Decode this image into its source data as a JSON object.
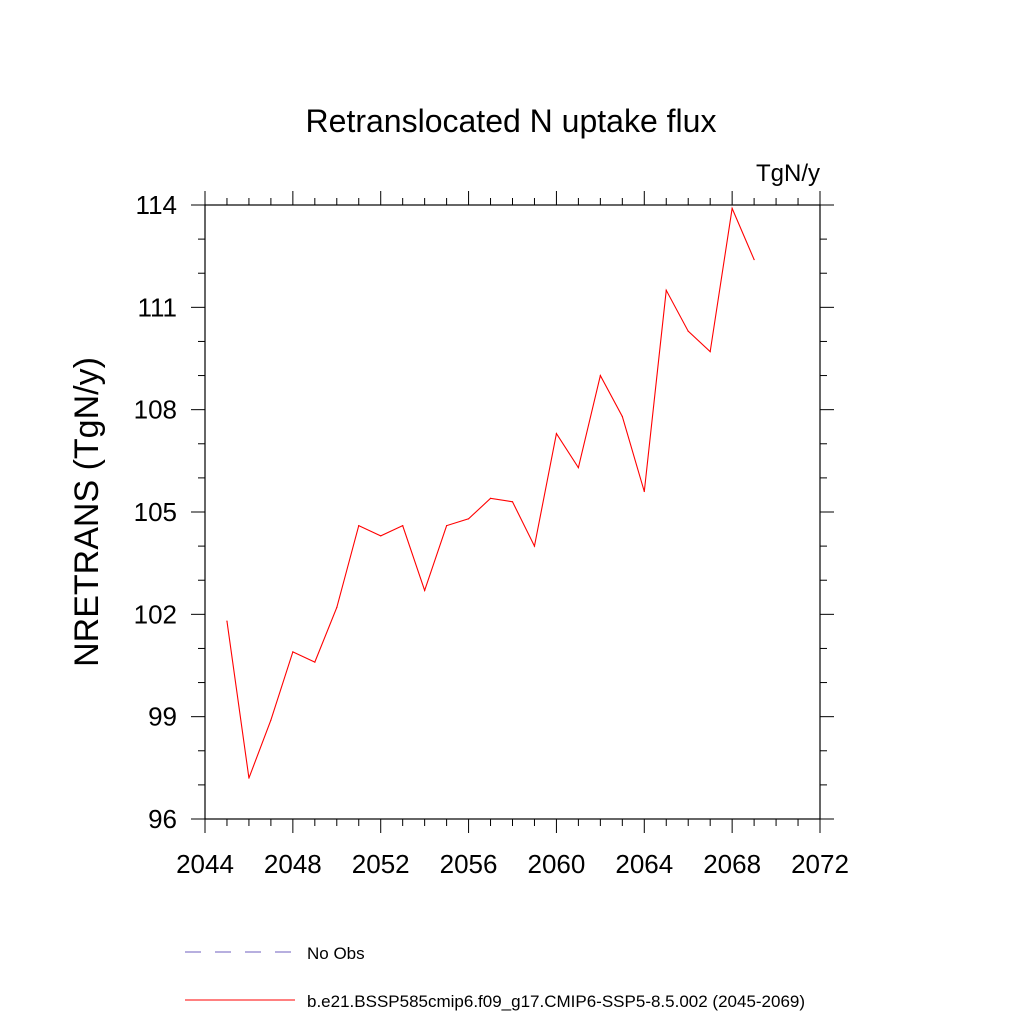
{
  "chart_data": {
    "type": "line",
    "title": "Retranslocated N uptake flux",
    "units": "TgN/y",
    "ylabel": "NRETRANS  (TgN/y)",
    "xlabel": "",
    "xlim": [
      2044,
      2072
    ],
    "ylim": [
      96,
      114
    ],
    "xticks": [
      2044,
      2048,
      2052,
      2056,
      2060,
      2064,
      2068,
      2072
    ],
    "yticks": [
      96,
      99,
      102,
      105,
      108,
      111,
      114
    ],
    "grid": false,
    "series": [
      {
        "name": "b.e21.BSSP585cmip6.f09_g17.CMIP6-SSP5-8.5.002 (2045-2069)",
        "color": "#ff0000",
        "x": [
          2045,
          2046,
          2047,
          2048,
          2049,
          2050,
          2051,
          2052,
          2053,
          2054,
          2055,
          2056,
          2057,
          2058,
          2059,
          2060,
          2061,
          2062,
          2063,
          2064,
          2065,
          2066,
          2067,
          2068,
          2069
        ],
        "values": [
          101.8,
          97.2,
          98.9,
          100.9,
          100.6,
          102.2,
          104.6,
          104.3,
          104.6,
          102.7,
          104.6,
          104.8,
          105.4,
          105.3,
          104.0,
          107.3,
          106.3,
          109.0,
          107.8,
          105.6,
          111.5,
          110.3,
          109.7,
          113.9,
          112.4
        ]
      }
    ],
    "legend": {
      "placement": "bottom",
      "entries": [
        {
          "label": "No Obs",
          "color": "#6f5fbf",
          "style": "dashed"
        },
        {
          "label": "b.e21.BSSP585cmip6.f09_g17.CMIP6-SSP5-8.5.002 (2045-2069)",
          "color": "#ff0000",
          "style": "solid"
        }
      ]
    }
  }
}
